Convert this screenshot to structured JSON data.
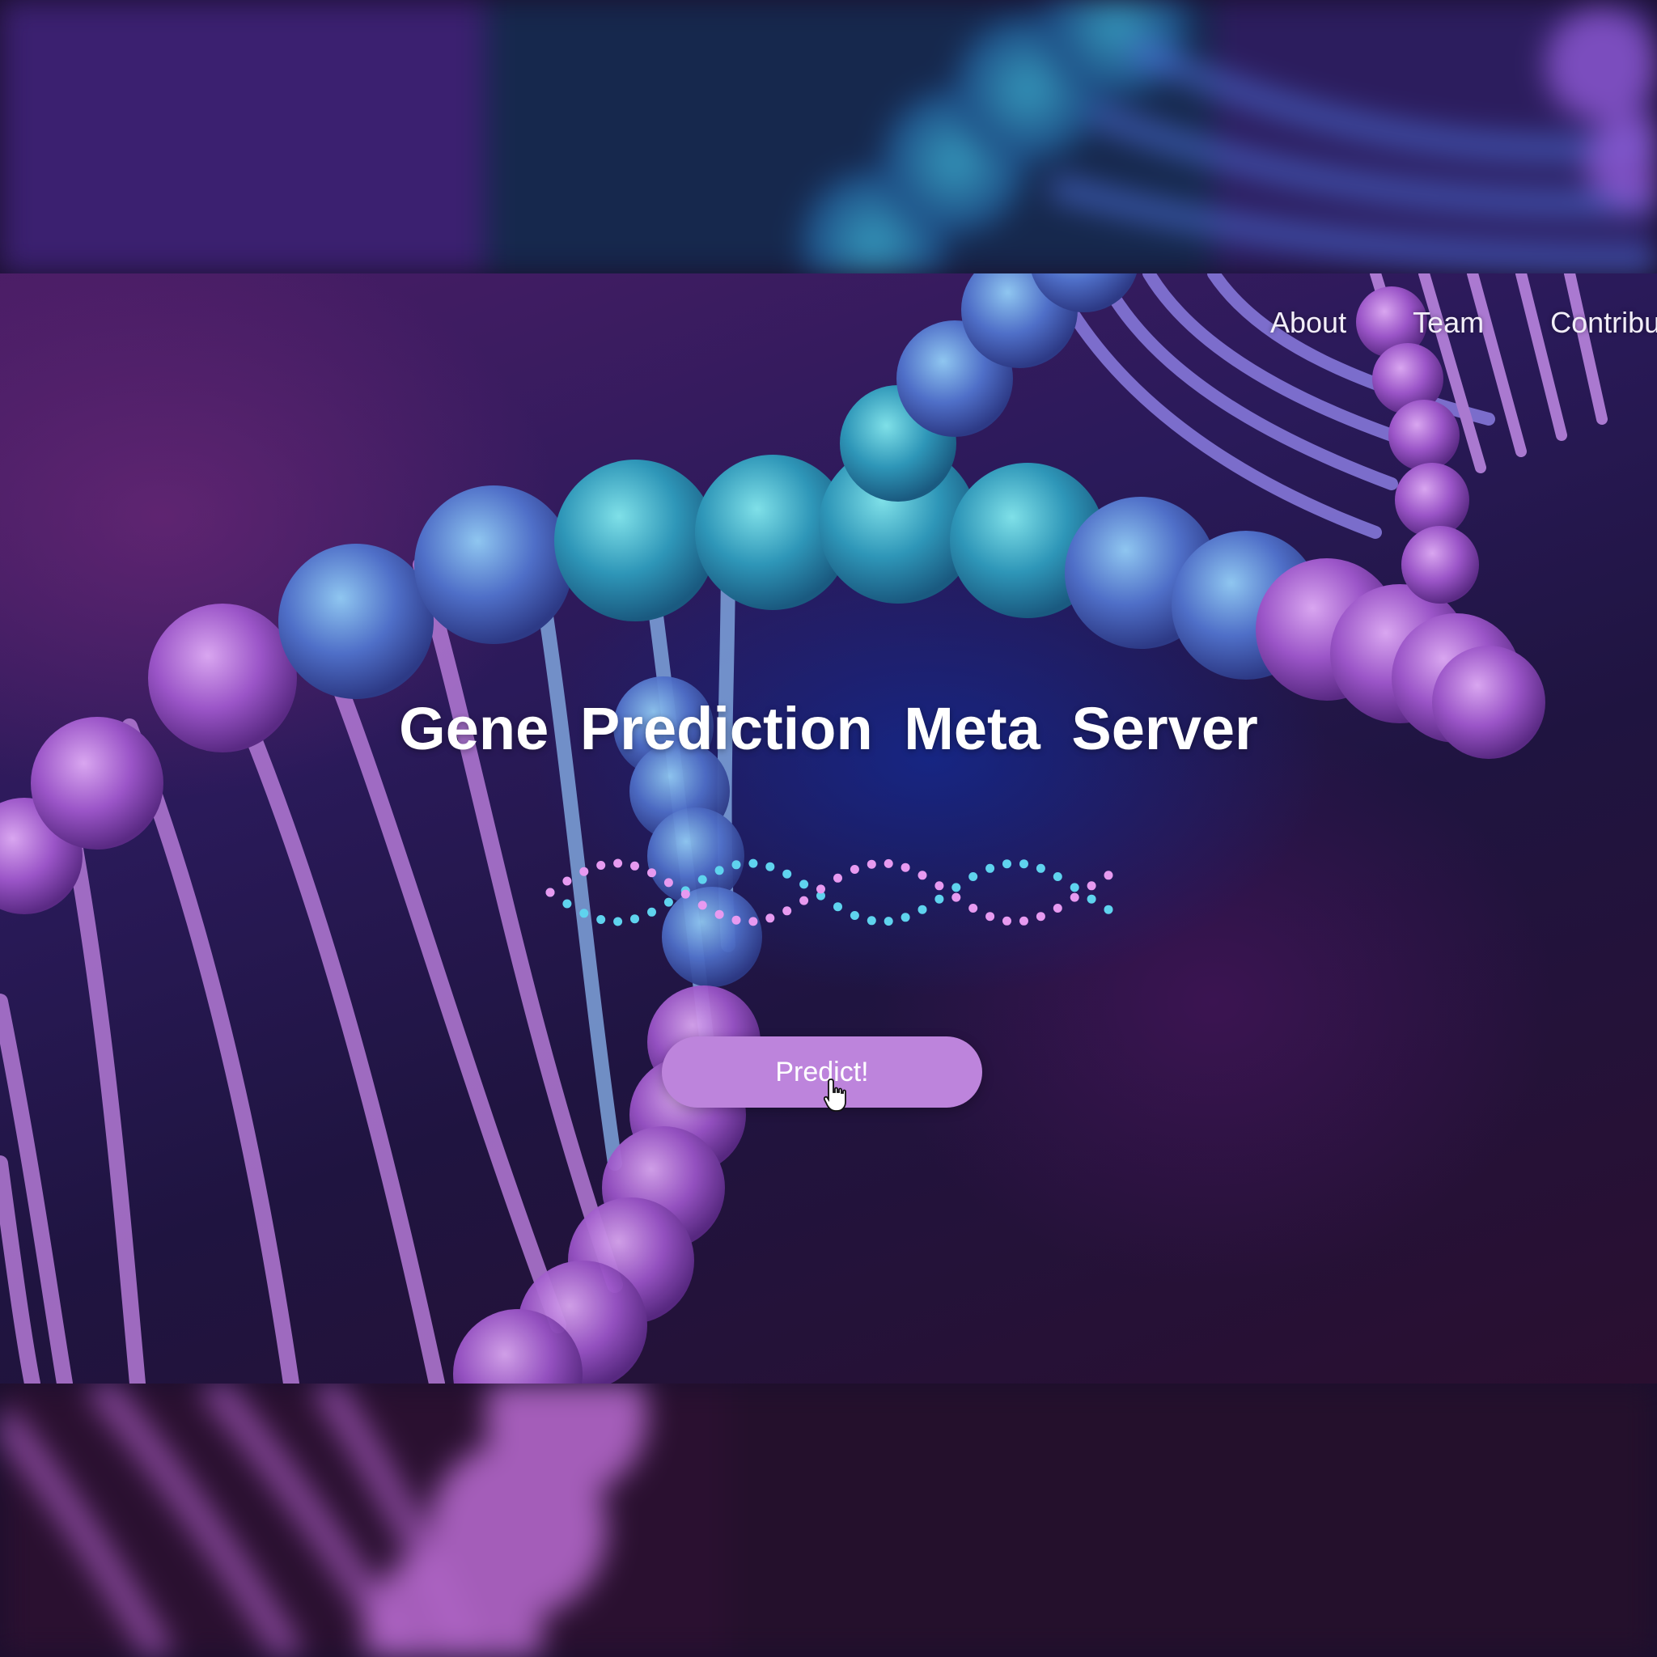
{
  "nav": {
    "items": [
      {
        "label": "About"
      },
      {
        "label": "Team"
      },
      {
        "label": "Contribu"
      }
    ]
  },
  "hero": {
    "title_words": [
      "Gene",
      "Prediction",
      "Meta",
      "Server"
    ],
    "predict_label": "Predict!"
  },
  "icons": {
    "cursor": "hand-pointer-icon",
    "helix": "dna-dots-icon"
  },
  "colors": {
    "button": "#bd84dc",
    "helix_cyan": "#5fd3ee",
    "helix_pink": "#e79af0",
    "accent_purple": "#9a5cd6"
  }
}
